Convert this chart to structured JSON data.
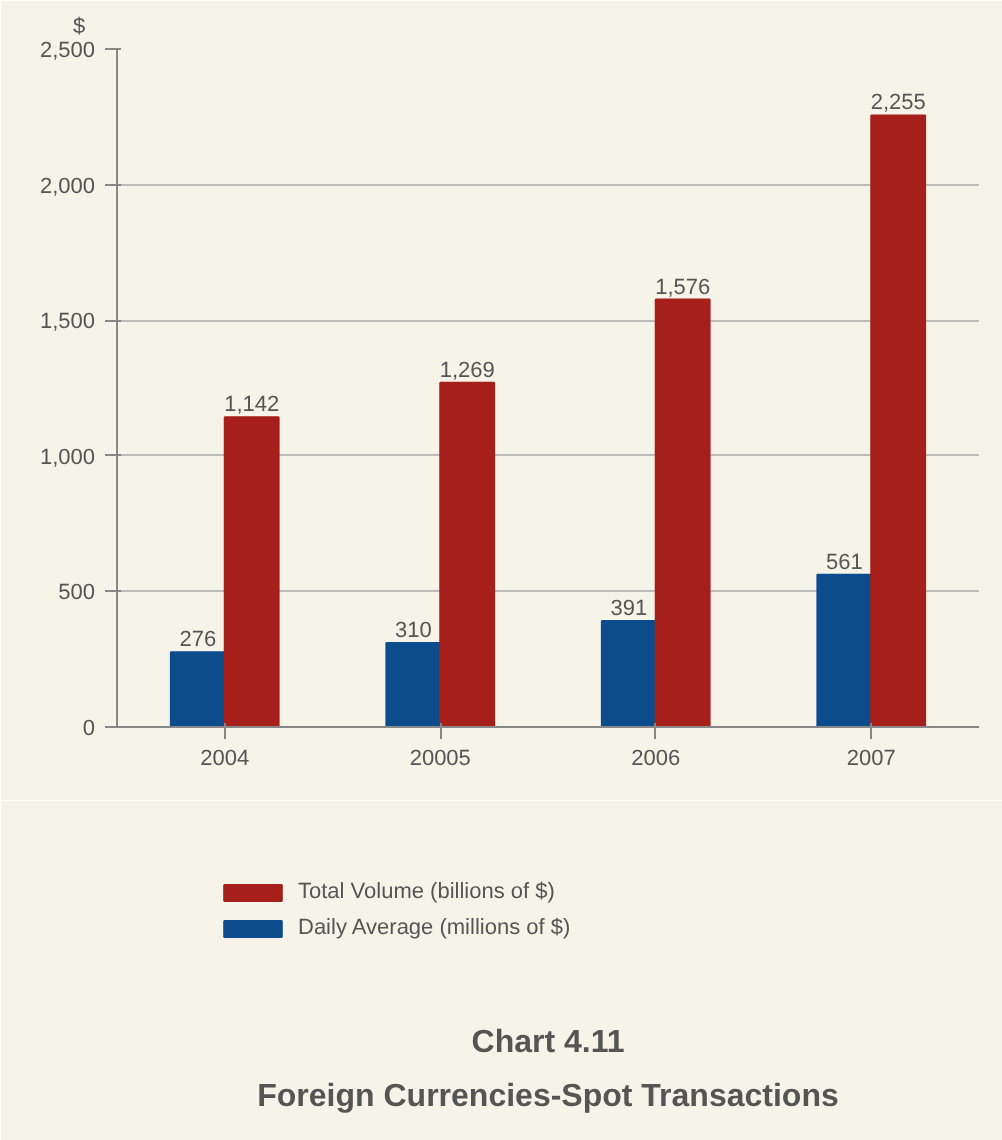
{
  "chart_data": {
    "type": "bar",
    "title": "Chart 4.11",
    "subtitle": "Foreign Currencies-Spot Transactions",
    "ylabel": "$",
    "categories": [
      "2004",
      "20005",
      "2006",
      "2007"
    ],
    "series": [
      {
        "name": "Daily Average (millions of $)",
        "color": "#0d4c8c",
        "values": [
          276,
          310,
          391,
          561
        ],
        "value_labels": [
          "276",
          "310",
          "391",
          "561"
        ]
      },
      {
        "name": "Total Volume (billions of $)",
        "color": "#a61f1a",
        "values": [
          1142,
          1269,
          1576,
          2255
        ],
        "value_labels": [
          "1,142",
          "1,269",
          "1,576",
          "2,255"
        ]
      }
    ],
    "ylim": [
      0,
      2500
    ],
    "yticks": [
      0,
      500,
      {
        "value": 1000,
        "label": "1,000"
      },
      {
        "value": 1500,
        "label": "1,500"
      },
      {
        "value": 2000,
        "label": "2,000"
      },
      {
        "value": 2500,
        "label": "2,500"
      }
    ],
    "grid": "y",
    "legend": "bottom left"
  }
}
